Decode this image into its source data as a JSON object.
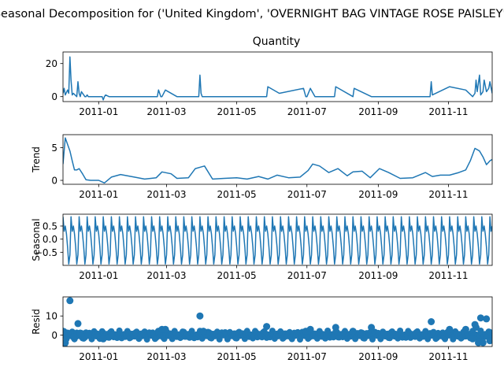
{
  "figure": {
    "suptitle": "Seasonal Decomposition for ('United Kingdom', 'OVERNIGHT BAG VINTAGE ROSE PAISLEY')"
  },
  "colors": {
    "line": "#1f77b4",
    "axis": "#000000",
    "zero_line": "#000000"
  },
  "chart_data": [
    {
      "type": "line",
      "title": "Quantity",
      "ylabel": "",
      "xlim": [
        "2010-12-01",
        "2011-12-09"
      ],
      "ylim": [
        -3,
        27
      ],
      "yticks": [
        0,
        20
      ],
      "xticks": [
        "2011-01",
        "2011-03",
        "2011-05",
        "2011-07",
        "2011-09",
        "2011-11"
      ],
      "x": [
        "2010-12-01",
        "2010-12-02",
        "2010-12-03",
        "2010-12-05",
        "2010-12-06",
        "2010-12-07",
        "2010-12-08",
        "2010-12-09",
        "2010-12-10",
        "2010-12-13",
        "2010-12-14",
        "2010-12-15",
        "2010-12-16",
        "2010-12-17",
        "2010-12-20",
        "2010-12-21",
        "2010-12-22",
        "2010-12-23",
        "2011-01-04",
        "2011-01-05",
        "2011-01-06",
        "2011-01-07",
        "2011-01-10",
        "2011-01-11",
        "2011-01-18",
        "2011-01-21",
        "2011-02-01",
        "2011-02-18",
        "2011-02-21",
        "2011-02-22",
        "2011-02-24",
        "2011-02-25",
        "2011-02-28",
        "2011-03-10",
        "2011-03-29",
        "2011-03-30",
        "2011-03-31",
        "2011-04-01",
        "2011-05-27",
        "2011-05-28",
        "2011-06-07",
        "2011-06-28",
        "2011-06-30",
        "2011-07-01",
        "2011-07-04",
        "2011-07-08",
        "2011-07-25",
        "2011-07-26",
        "2011-08-10",
        "2011-08-11",
        "2011-08-26",
        "2011-10-16",
        "2011-10-17",
        "2011-10-18",
        "2011-11-02",
        "2011-11-16",
        "2011-11-22",
        "2011-11-24",
        "2011-11-25",
        "2011-11-26",
        "2011-11-28",
        "2011-11-29",
        "2011-12-01",
        "2011-12-02",
        "2011-12-04",
        "2011-12-06",
        "2011-12-07",
        "2011-12-09"
      ],
      "y": [
        2,
        5,
        1,
        4,
        2,
        24,
        10,
        1,
        2,
        0,
        9,
        2,
        0,
        3,
        0,
        0,
        1,
        0,
        0,
        -2,
        0,
        1,
        0,
        0,
        0,
        0,
        0,
        0,
        0,
        4,
        0,
        0,
        4,
        0,
        0,
        13,
        2,
        0,
        0,
        6,
        2,
        5,
        0,
        0,
        5,
        0,
        0,
        6,
        0,
        5,
        0,
        0,
        9,
        1,
        6,
        4,
        0,
        2,
        10,
        3,
        13,
        1,
        3,
        10,
        3,
        5,
        9,
        2
      ]
    },
    {
      "type": "line",
      "title": "",
      "ylabel": "Trend",
      "xlim": [
        "2010-12-01",
        "2011-12-09"
      ],
      "ylim": [
        -0.6,
        7
      ],
      "yticks": [
        0,
        5
      ],
      "xticks": [
        "2011-01",
        "2011-03",
        "2011-05",
        "2011-07",
        "2011-09",
        "2011-11"
      ],
      "x": [
        "2010-12-01",
        "2010-12-03",
        "2010-12-05",
        "2010-12-07",
        "2010-12-09",
        "2010-12-11",
        "2010-12-13",
        "2010-12-15",
        "2010-12-18",
        "2010-12-21",
        "2010-12-25",
        "2011-01-01",
        "2011-01-06",
        "2011-01-12",
        "2011-01-20",
        "2011-02-01",
        "2011-02-10",
        "2011-02-20",
        "2011-02-25",
        "2011-03-05",
        "2011-03-10",
        "2011-03-20",
        "2011-03-26",
        "2011-04-03",
        "2011-04-10",
        "2011-04-20",
        "2011-05-01",
        "2011-05-10",
        "2011-05-20",
        "2011-05-28",
        "2011-06-05",
        "2011-06-15",
        "2011-06-25",
        "2011-07-02",
        "2011-07-06",
        "2011-07-12",
        "2011-07-20",
        "2011-07-28",
        "2011-08-05",
        "2011-08-10",
        "2011-08-18",
        "2011-08-25",
        "2011-09-02",
        "2011-09-10",
        "2011-09-20",
        "2011-10-01",
        "2011-10-12",
        "2011-10-18",
        "2011-10-25",
        "2011-11-02",
        "2011-11-10",
        "2011-11-16",
        "2011-11-20",
        "2011-11-24",
        "2011-11-28",
        "2011-12-01",
        "2011-12-04",
        "2011-12-07",
        "2011-12-09"
      ],
      "y": [
        2.5,
        6.5,
        5.5,
        4.5,
        3.0,
        1.6,
        1.6,
        1.8,
        1.0,
        0.1,
        0,
        0,
        -0.4,
        0.5,
        0.9,
        0.5,
        0.2,
        0.4,
        1.3,
        1.0,
        0.3,
        0.4,
        1.8,
        2.2,
        0.2,
        0.3,
        0.4,
        0.2,
        0.6,
        0.2,
        0.8,
        0.4,
        0.5,
        1.5,
        2.5,
        2.2,
        1.2,
        1.8,
        0.7,
        1.3,
        1.4,
        0.4,
        1.8,
        1.2,
        0.3,
        0.4,
        1.2,
        0.6,
        0.8,
        0.8,
        1.2,
        1.6,
        3.0,
        4.9,
        4.5,
        3.6,
        2.4,
        3.0,
        3.2
      ]
    },
    {
      "type": "line",
      "title": "",
      "ylabel": "Seasonal",
      "xlim": [
        "2010-12-01",
        "2011-12-09"
      ],
      "ylim": [
        -1.0,
        0.95
      ],
      "yticks": [
        -0.5,
        0.0,
        0.5
      ],
      "xticks": [
        "2011-01",
        "2011-03",
        "2011-05",
        "2011-07",
        "2011-09",
        "2011-11"
      ],
      "period_days": 7,
      "cycle": [
        0.85,
        0.3,
        0.5,
        0.2,
        -0.3,
        -0.95,
        -0.6
      ]
    },
    {
      "type": "scatter",
      "title": "",
      "ylabel": "Resid",
      "xlim": [
        "2010-12-01",
        "2011-12-09"
      ],
      "ylim": [
        -6,
        20
      ],
      "yticks": [
        0,
        10
      ],
      "xticks": [
        "2011-01",
        "2011-03",
        "2011-05",
        "2011-07",
        "2011-09",
        "2011-11"
      ],
      "x": [
        "2010-12-01",
        "2010-12-02",
        "2010-12-03",
        "2010-12-05",
        "2010-12-07",
        "2010-12-10",
        "2010-12-14",
        "2010-12-16",
        "2010-12-20",
        "2010-12-23",
        "2011-01-05",
        "2011-01-12",
        "2011-02-22",
        "2011-02-25",
        "2011-02-28",
        "2011-03-30",
        "2011-04-02",
        "2011-05-27",
        "2011-06-30",
        "2011-07-04",
        "2011-07-26",
        "2011-08-10",
        "2011-08-26",
        "2011-10-17",
        "2011-11-02",
        "2011-11-16",
        "2011-11-22",
        "2011-11-24",
        "2011-11-25",
        "2011-11-27",
        "2011-11-29",
        "2011-12-01",
        "2011-12-04",
        "2011-12-07"
      ],
      "y": [
        2,
        -5,
        -4,
        1,
        18,
        -1,
        6,
        1,
        -1,
        0,
        -2,
        0,
        2,
        3,
        3,
        10,
        2,
        4.5,
        2,
        3,
        4,
        2,
        4,
        7,
        3,
        3,
        -2,
        5.5,
        4,
        -4,
        9,
        -4,
        8.5,
        -3
      ]
    }
  ]
}
